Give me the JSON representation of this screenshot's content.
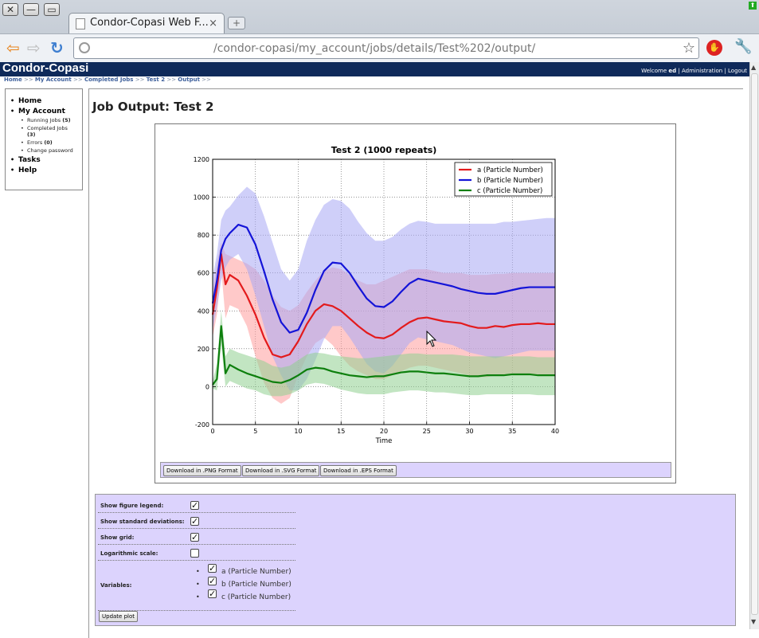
{
  "browser": {
    "tab_title": "Condor-Copasi Web F...",
    "tab_close": "×",
    "newtab": "+",
    "url": "/condor-copasi/my_account/jobs/details/Test%202/output/",
    "window_close": "✕",
    "window_min": "—",
    "window_max": "▭",
    "back": "⇦",
    "forward": "⇨",
    "reload": "↻",
    "star": "☆",
    "wrench": "🔧",
    "ext": "✋",
    "update": "⬆"
  },
  "header": {
    "site_title": "Condor-Copasi",
    "welcome": "Welcome",
    "user": "ed",
    "sep1": "|",
    "admin": "Administration",
    "sep2": "|",
    "logout": "Logout"
  },
  "breadcrumb": {
    "items": [
      "Home",
      "My Account",
      "Completed Jobs",
      "Test 2",
      "Output"
    ],
    "sep": ">>"
  },
  "sidebar": {
    "home": "Home",
    "my_account": "My Account",
    "running_jobs": "Running Jobs",
    "running_count": "(5)",
    "completed_jobs": "Completed Jobs",
    "completed_count": "(3)",
    "errors": "Errors",
    "errors_count": "(0)",
    "change_password": "Change password",
    "tasks": "Tasks",
    "help": "Help"
  },
  "page": {
    "title": "Job Output: Test 2"
  },
  "downloads": {
    "png": "Download in .PNG Format",
    "svg": "Download in .SVG Format",
    "eps": "Download in .EPS Format"
  },
  "options": {
    "legend_label": "Show figure legend:",
    "legend_checked": true,
    "stddev_label": "Show standard deviations:",
    "stddev_checked": true,
    "grid_label": "Show grid:",
    "grid_checked": true,
    "log_label": "Logarithmic scale:",
    "log_checked": false,
    "variables_label": "Variables:",
    "variables": [
      {
        "name": "a (Particle Number)",
        "checked": true
      },
      {
        "name": "b (Particle Number)",
        "checked": true
      },
      {
        "name": "c (Particle Number)",
        "checked": true
      }
    ],
    "update_button": "Update plot",
    "check_mark": "✓"
  },
  "chart_data": {
    "type": "line",
    "title": "Test 2 (1000 repeats)",
    "xlabel": "Time",
    "ylabel": "",
    "xlim": [
      0,
      40
    ],
    "ylim": [
      -200,
      1200
    ],
    "xticks": [
      0,
      5,
      10,
      15,
      20,
      25,
      30,
      35,
      40
    ],
    "yticks": [
      -200,
      0,
      200,
      400,
      600,
      800,
      1000,
      1200
    ],
    "grid": true,
    "legend_position": "top-right",
    "x": [
      0,
      0.5,
      1,
      1.5,
      2,
      3,
      4,
      5,
      6,
      7,
      8,
      9,
      10,
      11,
      12,
      13,
      14,
      15,
      16,
      17,
      18,
      19,
      20,
      21,
      22,
      23,
      24,
      25,
      26,
      27,
      28,
      29,
      30,
      31,
      32,
      33,
      34,
      35,
      36,
      37,
      38,
      39,
      40
    ],
    "series": [
      {
        "name": "a (Particle Number)",
        "color": "#e31a1c",
        "band_color": "#ff9c9c",
        "mean": [
          380,
          520,
          700,
          540,
          590,
          560,
          480,
          380,
          260,
          170,
          155,
          170,
          240,
          330,
          400,
          435,
          425,
          400,
          360,
          320,
          285,
          260,
          255,
          275,
          310,
          340,
          360,
          365,
          355,
          345,
          340,
          335,
          320,
          310,
          310,
          320,
          315,
          325,
          330,
          330,
          335,
          330,
          330
        ],
        "upper": [
          500,
          650,
          760,
          700,
          690,
          670,
          650,
          620,
          560,
          480,
          420,
          400,
          430,
          500,
          560,
          610,
          630,
          620,
          590,
          560,
          540,
          540,
          560,
          580,
          600,
          620,
          620,
          620,
          610,
          600,
          600,
          600,
          590,
          590,
          590,
          595,
          595,
          600,
          600,
          600,
          600,
          600,
          600
        ],
        "lower": [
          260,
          380,
          620,
          360,
          430,
          410,
          320,
          160,
          20,
          -60,
          -90,
          -60,
          60,
          160,
          230,
          260,
          220,
          160,
          110,
          80,
          60,
          40,
          40,
          60,
          80,
          100,
          110,
          110,
          100,
          90,
          80,
          70,
          60,
          50,
          50,
          60,
          60,
          60,
          60,
          60,
          60,
          60,
          60
        ]
      },
      {
        "name": "b (Particle Number)",
        "color": "#1414d8",
        "band_color": "#a8a8f4",
        "mean": [
          440,
          560,
          720,
          780,
          810,
          855,
          840,
          750,
          610,
          460,
          340,
          285,
          300,
          390,
          510,
          610,
          655,
          650,
          600,
          530,
          465,
          425,
          420,
          450,
          500,
          545,
          570,
          560,
          550,
          540,
          530,
          515,
          505,
          495,
          490,
          490,
          500,
          510,
          520,
          525,
          525,
          525,
          525
        ],
        "upper": [
          580,
          700,
          880,
          930,
          950,
          1010,
          1055,
          1020,
          900,
          760,
          620,
          560,
          620,
          770,
          880,
          960,
          990,
          980,
          940,
          870,
          810,
          770,
          770,
          790,
          830,
          860,
          875,
          870,
          860,
          860,
          860,
          860,
          860,
          860,
          860,
          860,
          870,
          870,
          875,
          880,
          885,
          890,
          890
        ],
        "lower": [
          300,
          420,
          560,
          630,
          670,
          700,
          620,
          480,
          320,
          160,
          60,
          -20,
          -20,
          40,
          140,
          250,
          320,
          320,
          260,
          190,
          120,
          80,
          70,
          110,
          170,
          230,
          260,
          250,
          240,
          230,
          220,
          200,
          180,
          170,
          160,
          150,
          160,
          170,
          180,
          190,
          190,
          190,
          190
        ]
      },
      {
        "name": "c (Particle Number)",
        "color": "#0d7f0d",
        "band_color": "#8fcf8f",
        "mean": [
          10,
          40,
          320,
          70,
          115,
          90,
          70,
          55,
          40,
          25,
          20,
          35,
          60,
          90,
          100,
          95,
          80,
          70,
          60,
          55,
          50,
          55,
          55,
          65,
          75,
          80,
          80,
          75,
          70,
          70,
          65,
          60,
          55,
          55,
          60,
          60,
          60,
          65,
          65,
          65,
          60,
          60,
          60
        ],
        "upper": [
          30,
          120,
          400,
          160,
          200,
          180,
          165,
          150,
          135,
          110,
          100,
          110,
          140,
          170,
          180,
          175,
          165,
          160,
          155,
          150,
          150,
          155,
          160,
          165,
          170,
          175,
          175,
          170,
          170,
          170,
          170,
          165,
          160,
          160,
          160,
          160,
          160,
          160,
          160,
          160,
          155,
          155,
          155
        ],
        "lower": [
          -10,
          -20,
          220,
          0,
          30,
          10,
          -10,
          -20,
          -40,
          -50,
          -50,
          -40,
          -20,
          10,
          20,
          15,
          0,
          -15,
          -25,
          -35,
          -40,
          -40,
          -40,
          -30,
          -25,
          -20,
          -20,
          -25,
          -30,
          -30,
          -35,
          -40,
          -45,
          -45,
          -40,
          -40,
          -40,
          -40,
          -40,
          -40,
          -45,
          -45,
          -45
        ]
      }
    ]
  }
}
